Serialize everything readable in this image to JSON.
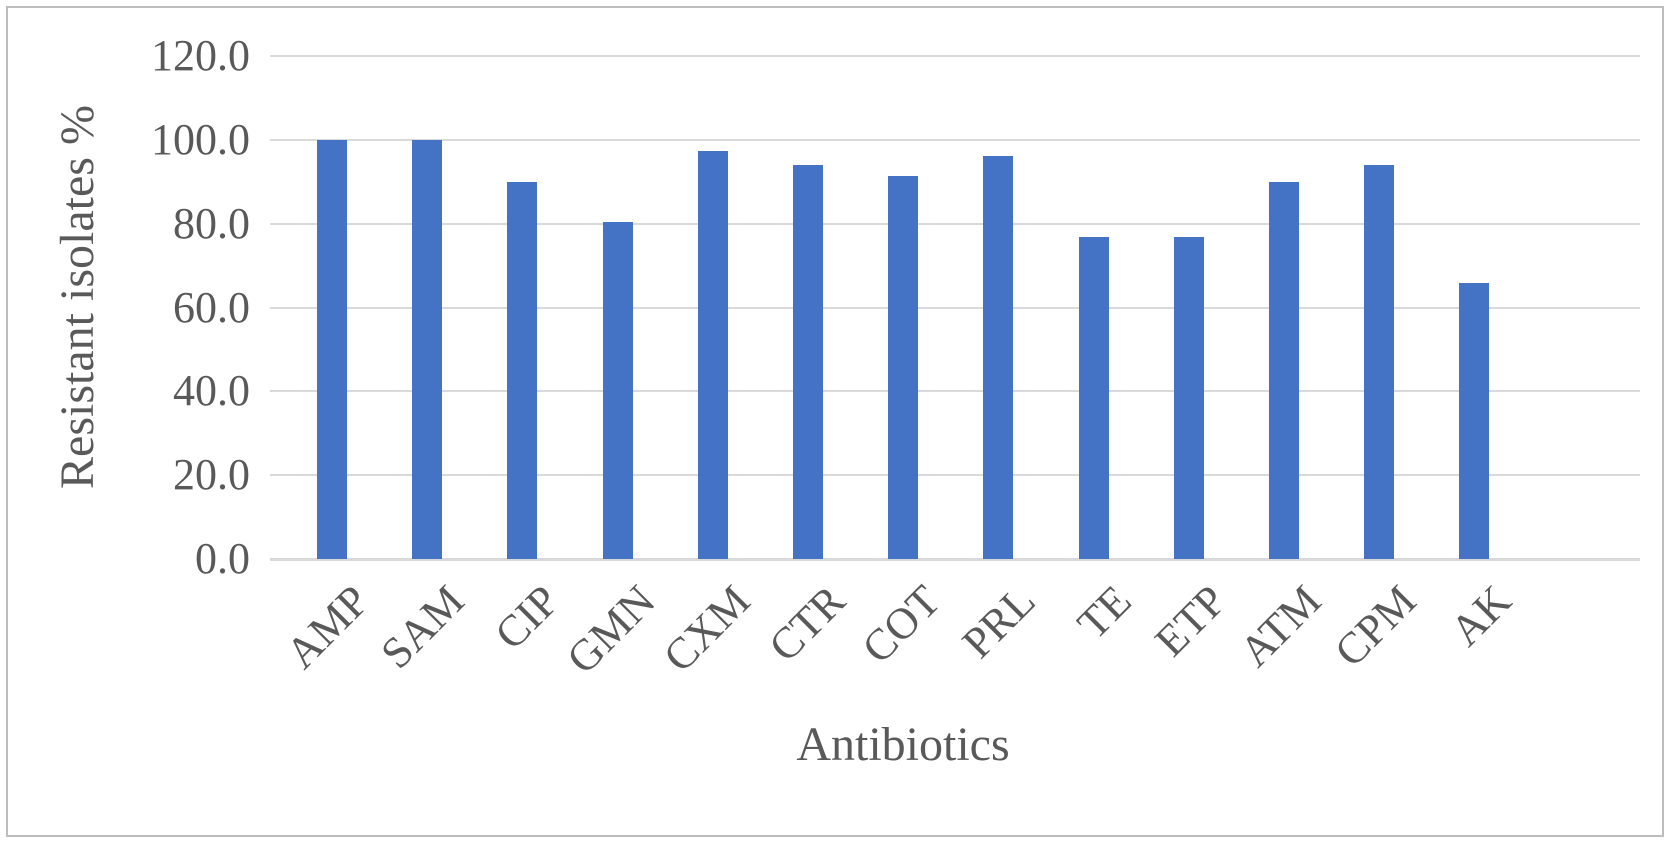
{
  "chart_data": {
    "type": "bar",
    "title": "",
    "categories": [
      "AMP",
      "SAM",
      "CIP",
      "GMN",
      "CXM",
      "CTR",
      "COT",
      "PRL",
      "TE",
      "ETP",
      "ATM",
      "CPM",
      "AK"
    ],
    "values": [
      100.0,
      100.0,
      90.0,
      80.3,
      97.4,
      93.9,
      91.3,
      96.2,
      76.7,
      76.7,
      90.0,
      93.9,
      65.8
    ],
    "xlabel": "Antibiotics",
    "ylabel": "Resistant isolates %",
    "ylim": [
      0,
      120
    ],
    "ytick_step": 20,
    "ytick_labels": [
      "0.0",
      "20.0",
      "40.0",
      "60.0",
      "80.0",
      "100.0",
      "120.0"
    ],
    "grid": true,
    "legend": "none",
    "colors": {
      "bar": "#4472C4",
      "gridline": "#D9D9D9",
      "axis_text": "#595959",
      "frame_border": "#BDBDBD",
      "background": "#FFFFFF"
    }
  }
}
